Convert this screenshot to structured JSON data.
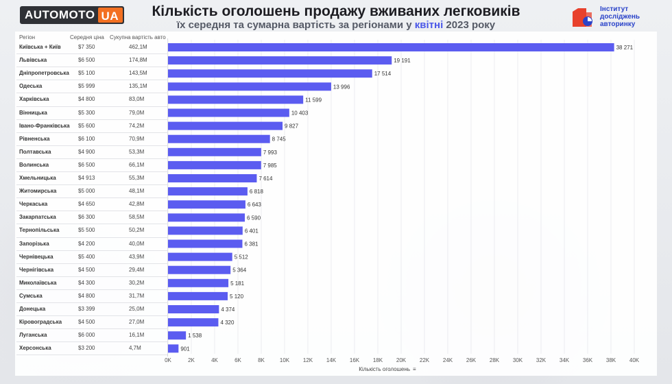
{
  "header": {
    "logo_left": "AUTOMOTO",
    "logo_right": "UA",
    "title": "Кількість оголошень продажу вживаних легковиків",
    "subtitle_before": "їх середня та сумарна вартість за регіонами у ",
    "subtitle_highlight": "квітні",
    "subtitle_after": " 2023 року",
    "institute_line1": "Інститут",
    "institute_line2": "досліджень",
    "institute_line3": "авторинку"
  },
  "table": {
    "col_region": "Регіон",
    "col_price": "Середня ціна",
    "col_total": "Сукупна вартість авто"
  },
  "colors": {
    "bar": "#5b5cf0",
    "accent": "#4a57e8",
    "logo_orange": "#f37021",
    "inst_red": "#e8412c",
    "inst_blue": "#2b44c9"
  },
  "chart_data": {
    "type": "bar",
    "orientation": "horizontal",
    "xlabel": "Кількість оголошень",
    "xlim": [
      0,
      40000
    ],
    "xticks": [
      "0K",
      "2K",
      "4K",
      "6K",
      "8K",
      "10K",
      "12K",
      "14K",
      "16K",
      "18K",
      "20K",
      "22K",
      "24K",
      "26K",
      "28K",
      "30K",
      "32K",
      "34K",
      "36K",
      "38K",
      "40K"
    ],
    "rows": [
      {
        "region": "Київська + Київ",
        "price": "$7 350",
        "total": "462,1M",
        "value": 38271,
        "label": "38 271"
      },
      {
        "region": "Львівська",
        "price": "$6 500",
        "total": "174,8M",
        "value": 19191,
        "label": "19 191"
      },
      {
        "region": "Дніпропетровська",
        "price": "$5 100",
        "total": "143,5M",
        "value": 17514,
        "label": "17 514"
      },
      {
        "region": "Одеська",
        "price": "$5 999",
        "total": "135,1M",
        "value": 13996,
        "label": "13 996"
      },
      {
        "region": "Харківська",
        "price": "$4 800",
        "total": "83,0M",
        "value": 11599,
        "label": "11 599"
      },
      {
        "region": "Вінницька",
        "price": "$5 300",
        "total": "79,0M",
        "value": 10403,
        "label": "10 403"
      },
      {
        "region": "Івано-Франківська",
        "price": "$5 600",
        "total": "74,2M",
        "value": 9827,
        "label": "9 827"
      },
      {
        "region": "Рівненська",
        "price": "$6 100",
        "total": "70,9M",
        "value": 8745,
        "label": "8 745"
      },
      {
        "region": "Полтавська",
        "price": "$4 900",
        "total": "53,3M",
        "value": 7993,
        "label": "7 993"
      },
      {
        "region": "Волинська",
        "price": "$6 500",
        "total": "66,1M",
        "value": 7985,
        "label": "7 985"
      },
      {
        "region": "Хмельницька",
        "price": "$4 913",
        "total": "55,3M",
        "value": 7614,
        "label": "7 614"
      },
      {
        "region": "Житомирська",
        "price": "$5 000",
        "total": "48,1M",
        "value": 6818,
        "label": "6 818"
      },
      {
        "region": "Черкаська",
        "price": "$4 650",
        "total": "42,8M",
        "value": 6643,
        "label": "6 643"
      },
      {
        "region": "Закарпатська",
        "price": "$6 300",
        "total": "58,5M",
        "value": 6590,
        "label": "6 590"
      },
      {
        "region": "Тернопільська",
        "price": "$5 500",
        "total": "50,2M",
        "value": 6401,
        "label": "6 401"
      },
      {
        "region": "Запорізька",
        "price": "$4 200",
        "total": "40,0M",
        "value": 6381,
        "label": "6 381"
      },
      {
        "region": "Чернівецька",
        "price": "$5 400",
        "total": "43,9M",
        "value": 5512,
        "label": "5 512"
      },
      {
        "region": "Чернігівська",
        "price": "$4 500",
        "total": "29,4M",
        "value": 5364,
        "label": "5 364"
      },
      {
        "region": "Миколаївська",
        "price": "$4 300",
        "total": "30,2M",
        "value": 5181,
        "label": "5 181"
      },
      {
        "region": "Сумська",
        "price": "$4 800",
        "total": "31,7M",
        "value": 5120,
        "label": "5 120"
      },
      {
        "region": "Донецька",
        "price": "$3 399",
        "total": "25,0M",
        "value": 4374,
        "label": "4 374"
      },
      {
        "region": "Кіровоградська",
        "price": "$4 500",
        "total": "27,0M",
        "value": 4320,
        "label": "4 320"
      },
      {
        "region": "Луганська",
        "price": "$6 000",
        "total": "16,1M",
        "value": 1538,
        "label": "1 538"
      },
      {
        "region": "Херсонська",
        "price": "$3 200",
        "total": "4,7M",
        "value": 901,
        "label": "901"
      }
    ]
  }
}
